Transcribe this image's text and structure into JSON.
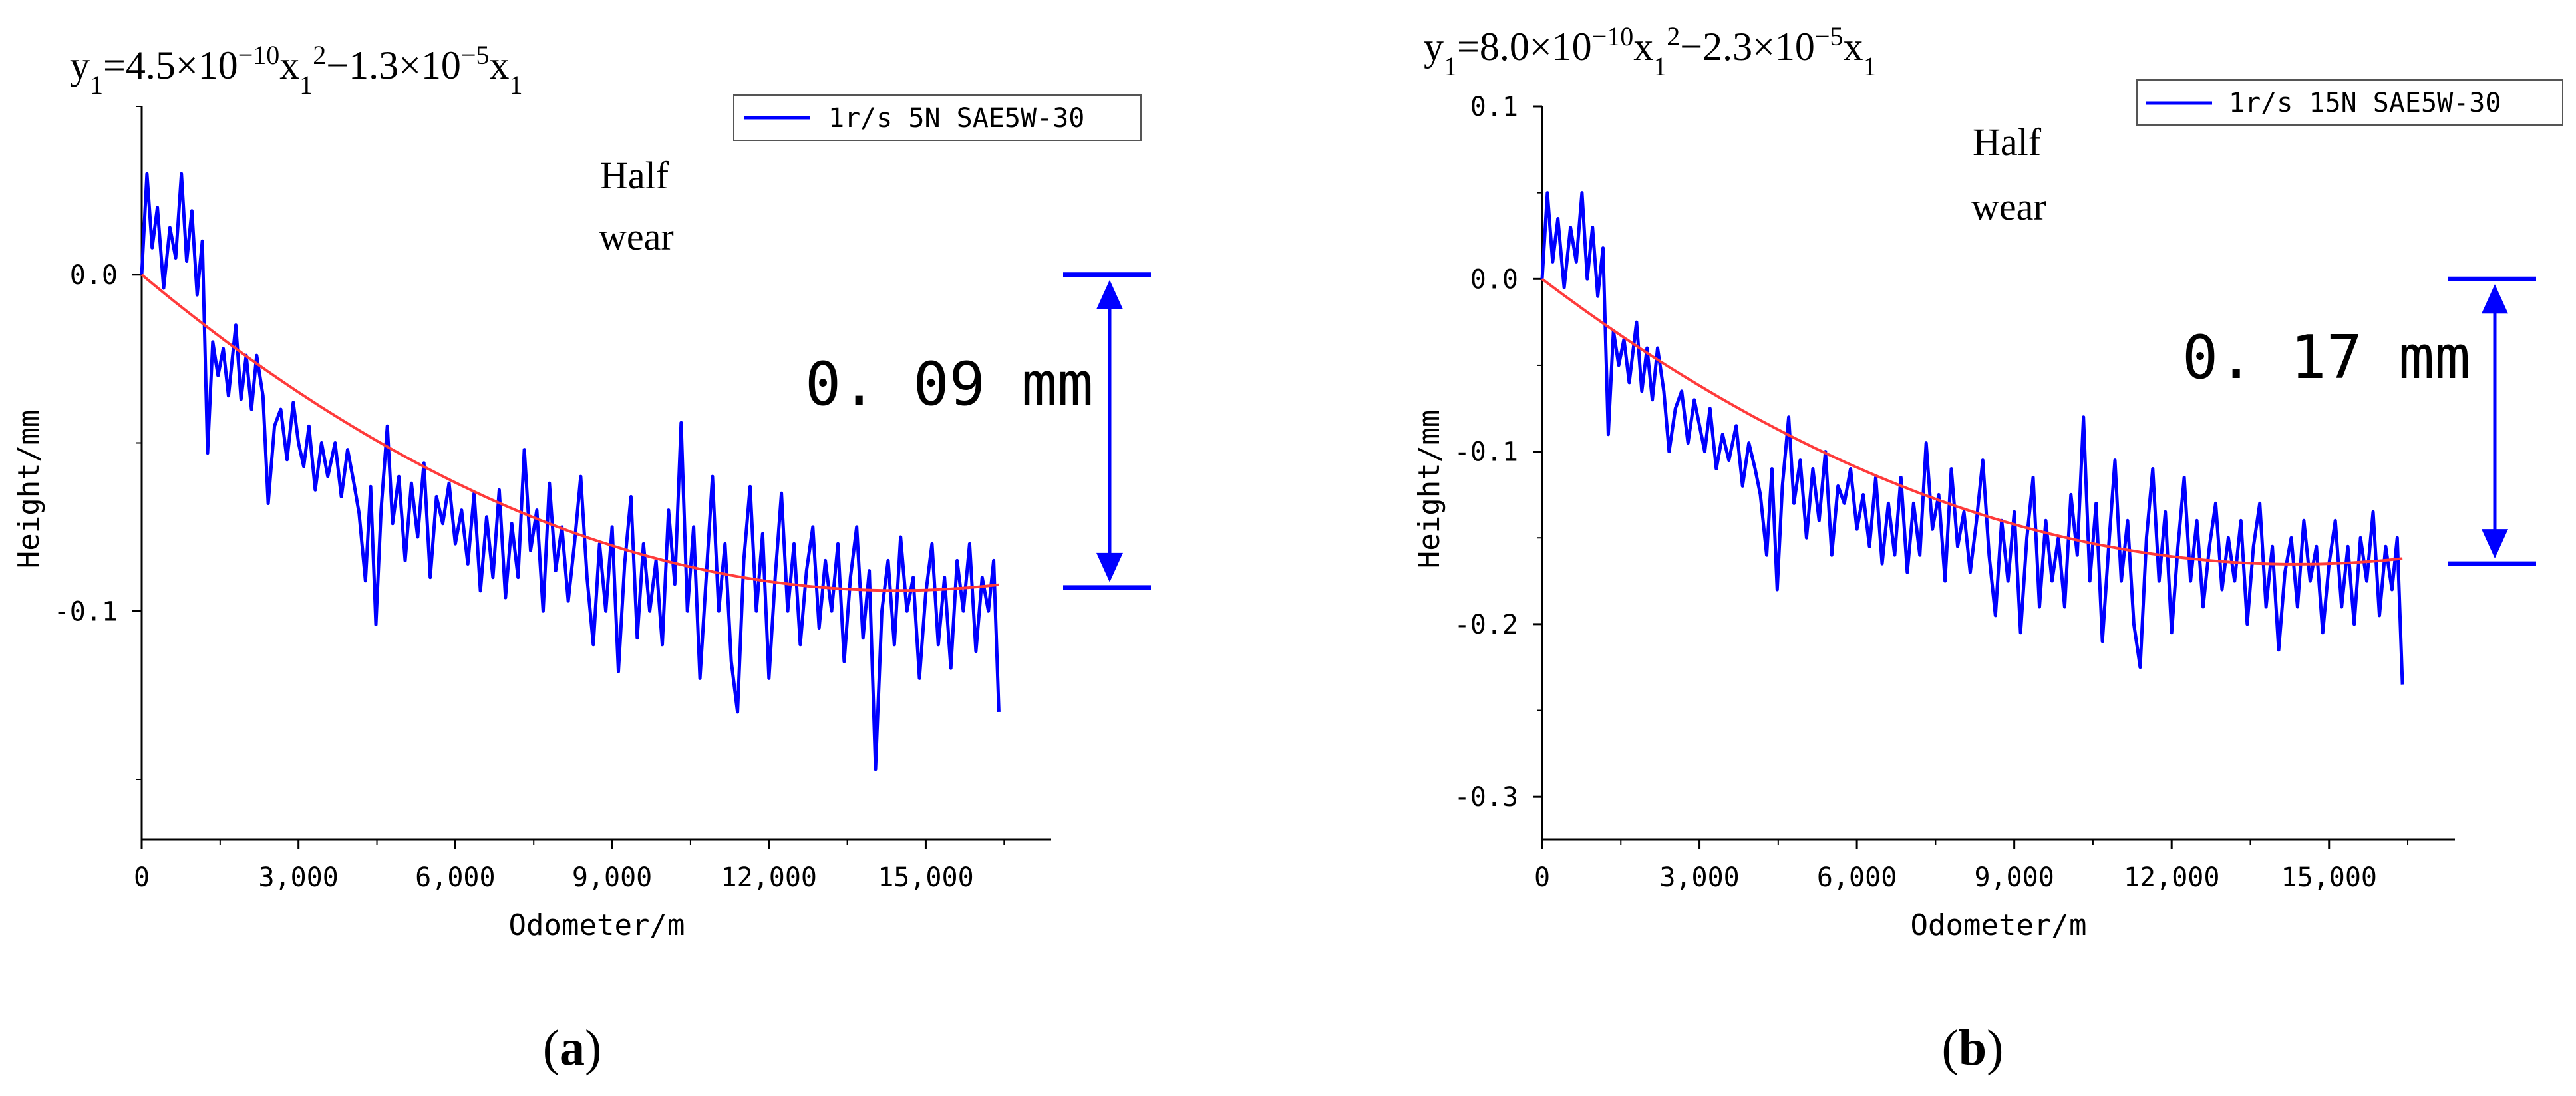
{
  "chart_data": [
    {
      "panel_label": "a",
      "type": "line",
      "equation": {
        "prefix": "y",
        "prefix_sub": "1",
        "eq1": "=4.5×10",
        "exp1": "−10",
        "x1": "x",
        "x1_sub": "1",
        "x1_sup": "2",
        "eq2": "−1.3×10",
        "exp2": "−5",
        "x2": "x",
        "x2_sub": "1"
      },
      "xlabel": "Odometer/m",
      "ylabel": "Height/mm",
      "xlim": [
        0,
        17400
      ],
      "ylim": [
        -0.168,
        0.05
      ],
      "xticks": [
        0,
        3000,
        6000,
        9000,
        12000,
        15000
      ],
      "xtick_labels": [
        "0",
        "3,000",
        "6,000",
        "9,000",
        "12,000",
        "15,000"
      ],
      "yticks": [
        0,
        -0.1
      ],
      "ytick_labels": [
        "0.0",
        "-0.1"
      ],
      "legend": "1r/s 5N SAE5W-30",
      "annotation": [
        "Half",
        "wear"
      ],
      "measure": {
        "label": "0. 09  mm",
        "top": 0,
        "bottom": -0.093
      },
      "fit": {
        "a": 4.5e-10,
        "b": -1.3e-05,
        "x_max": 16400
      },
      "series_color": "#0000ff",
      "fit_color": "#ff3b3b",
      "noise_points": [
        [
          0,
          0.0
        ],
        [
          100,
          0.03
        ],
        [
          200,
          0.008
        ],
        [
          300,
          0.02
        ],
        [
          420,
          -0.004
        ],
        [
          540,
          0.014
        ],
        [
          650,
          0.005
        ],
        [
          760,
          0.03
        ],
        [
          860,
          0.004
        ],
        [
          960,
          0.019
        ],
        [
          1060,
          -0.006
        ],
        [
          1160,
          0.01
        ],
        [
          1260,
          -0.053
        ],
        [
          1360,
          -0.02
        ],
        [
          1460,
          -0.03
        ],
        [
          1560,
          -0.022
        ],
        [
          1660,
          -0.036
        ],
        [
          1800,
          -0.015
        ],
        [
          1900,
          -0.037
        ],
        [
          2000,
          -0.024
        ],
        [
          2100,
          -0.04
        ],
        [
          2200,
          -0.024
        ],
        [
          2320,
          -0.036
        ],
        [
          2420,
          -0.068
        ],
        [
          2540,
          -0.045
        ],
        [
          2660,
          -0.04
        ],
        [
          2780,
          -0.055
        ],
        [
          2900,
          -0.038
        ],
        [
          3000,
          -0.05
        ],
        [
          3100,
          -0.057
        ],
        [
          3200,
          -0.045
        ],
        [
          3320,
          -0.064
        ],
        [
          3440,
          -0.05
        ],
        [
          3560,
          -0.06
        ],
        [
          3700,
          -0.05
        ],
        [
          3820,
          -0.066
        ],
        [
          3940,
          -0.052
        ],
        [
          4060,
          -0.062
        ],
        [
          4160,
          -0.071
        ],
        [
          4280,
          -0.091
        ],
        [
          4380,
          -0.063
        ],
        [
          4480,
          -0.104
        ],
        [
          4580,
          -0.07
        ],
        [
          4700,
          -0.045
        ],
        [
          4800,
          -0.074
        ],
        [
          4920,
          -0.06
        ],
        [
          5040,
          -0.085
        ],
        [
          5160,
          -0.062
        ],
        [
          5280,
          -0.078
        ],
        [
          5400,
          -0.056
        ],
        [
          5520,
          -0.09
        ],
        [
          5640,
          -0.066
        ],
        [
          5760,
          -0.074
        ],
        [
          5880,
          -0.062
        ],
        [
          6000,
          -0.08
        ],
        [
          6120,
          -0.07
        ],
        [
          6240,
          -0.086
        ],
        [
          6360,
          -0.065
        ],
        [
          6480,
          -0.094
        ],
        [
          6600,
          -0.072
        ],
        [
          6720,
          -0.09
        ],
        [
          6840,
          -0.064
        ],
        [
          6960,
          -0.096
        ],
        [
          7080,
          -0.074
        ],
        [
          7200,
          -0.09
        ],
        [
          7320,
          -0.052
        ],
        [
          7440,
          -0.082
        ],
        [
          7560,
          -0.07
        ],
        [
          7680,
          -0.1
        ],
        [
          7800,
          -0.062
        ],
        [
          7920,
          -0.088
        ],
        [
          8040,
          -0.075
        ],
        [
          8160,
          -0.097
        ],
        [
          8280,
          -0.08
        ],
        [
          8400,
          -0.06
        ],
        [
          8520,
          -0.09
        ],
        [
          8640,
          -0.11
        ],
        [
          8760,
          -0.08
        ],
        [
          8880,
          -0.1
        ],
        [
          9000,
          -0.075
        ],
        [
          9120,
          -0.118
        ],
        [
          9240,
          -0.086
        ],
        [
          9360,
          -0.066
        ],
        [
          9480,
          -0.108
        ],
        [
          9600,
          -0.08
        ],
        [
          9720,
          -0.1
        ],
        [
          9840,
          -0.085
        ],
        [
          9960,
          -0.11
        ],
        [
          10080,
          -0.07
        ],
        [
          10200,
          -0.092
        ],
        [
          10320,
          -0.044
        ],
        [
          10440,
          -0.1
        ],
        [
          10560,
          -0.075
        ],
        [
          10680,
          -0.12
        ],
        [
          10800,
          -0.09
        ],
        [
          10920,
          -0.06
        ],
        [
          11040,
          -0.1
        ],
        [
          11160,
          -0.08
        ],
        [
          11280,
          -0.115
        ],
        [
          11400,
          -0.13
        ],
        [
          11520,
          -0.085
        ],
        [
          11640,
          -0.063
        ],
        [
          11760,
          -0.1
        ],
        [
          11880,
          -0.077
        ],
        [
          12000,
          -0.12
        ],
        [
          12120,
          -0.09
        ],
        [
          12240,
          -0.065
        ],
        [
          12360,
          -0.1
        ],
        [
          12480,
          -0.08
        ],
        [
          12600,
          -0.11
        ],
        [
          12720,
          -0.088
        ],
        [
          12840,
          -0.075
        ],
        [
          12960,
          -0.105
        ],
        [
          13080,
          -0.085
        ],
        [
          13200,
          -0.1
        ],
        [
          13320,
          -0.08
        ],
        [
          13440,
          -0.115
        ],
        [
          13560,
          -0.09
        ],
        [
          13680,
          -0.075
        ],
        [
          13800,
          -0.108
        ],
        [
          13920,
          -0.088
        ],
        [
          14040,
          -0.147
        ],
        [
          14160,
          -0.1
        ],
        [
          14280,
          -0.085
        ],
        [
          14400,
          -0.11
        ],
        [
          14520,
          -0.078
        ],
        [
          14640,
          -0.1
        ],
        [
          14760,
          -0.09
        ],
        [
          14880,
          -0.12
        ],
        [
          15000,
          -0.095
        ],
        [
          15120,
          -0.08
        ],
        [
          15240,
          -0.11
        ],
        [
          15360,
          -0.09
        ],
        [
          15480,
          -0.117
        ],
        [
          15600,
          -0.085
        ],
        [
          15720,
          -0.1
        ],
        [
          15840,
          -0.08
        ],
        [
          15960,
          -0.112
        ],
        [
          16080,
          -0.09
        ],
        [
          16200,
          -0.1
        ],
        [
          16300,
          -0.085
        ],
        [
          16400,
          -0.13
        ]
      ]
    },
    {
      "panel_label": "b",
      "type": "line",
      "equation": {
        "prefix": "y",
        "prefix_sub": "1",
        "eq1": "=8.0×10",
        "exp1": "−10",
        "x1": "x",
        "x1_sub": "1",
        "x1_sup": "2",
        "eq2": "−2.3×10",
        "exp2": "−5",
        "x2": "x",
        "x2_sub": "1"
      },
      "xlabel": "Odometer/m",
      "ylabel": "Height/mm",
      "xlim": [
        0,
        17400
      ],
      "ylim": [
        -0.325,
        0.1
      ],
      "xticks": [
        0,
        3000,
        6000,
        9000,
        12000,
        15000
      ],
      "xtick_labels": [
        "0",
        "3,000",
        "6,000",
        "9,000",
        "12,000",
        "15,000"
      ],
      "yticks": [
        0.1,
        0,
        -0.1,
        -0.2,
        -0.3
      ],
      "ytick_labels": [
        "0.1",
        "0.0",
        "-0.1",
        "-0.2",
        "-0.3"
      ],
      "legend": "1r/s 15N SAE5W-30",
      "annotation": [
        "Half",
        "wear"
      ],
      "measure": {
        "label": "0. 17  mm",
        "top": 0,
        "bottom": -0.165
      },
      "fit": {
        "a": 8e-10,
        "b": -2.3e-05,
        "x_max": 16400
      },
      "series_color": "#0000ff",
      "fit_color": "#ff3b3b",
      "noise_points": [
        [
          0,
          0.0
        ],
        [
          100,
          0.05
        ],
        [
          200,
          0.01
        ],
        [
          300,
          0.035
        ],
        [
          420,
          -0.005
        ],
        [
          540,
          0.03
        ],
        [
          650,
          0.01
        ],
        [
          760,
          0.05
        ],
        [
          860,
          0.0
        ],
        [
          960,
          0.03
        ],
        [
          1060,
          -0.01
        ],
        [
          1160,
          0.018
        ],
        [
          1260,
          -0.09
        ],
        [
          1360,
          -0.03
        ],
        [
          1460,
          -0.05
        ],
        [
          1560,
          -0.035
        ],
        [
          1660,
          -0.06
        ],
        [
          1800,
          -0.025
        ],
        [
          1900,
          -0.065
        ],
        [
          2000,
          -0.04
        ],
        [
          2100,
          -0.07
        ],
        [
          2200,
          -0.04
        ],
        [
          2320,
          -0.065
        ],
        [
          2420,
          -0.1
        ],
        [
          2540,
          -0.075
        ],
        [
          2660,
          -0.065
        ],
        [
          2780,
          -0.095
        ],
        [
          2900,
          -0.07
        ],
        [
          3000,
          -0.085
        ],
        [
          3100,
          -0.1
        ],
        [
          3200,
          -0.075
        ],
        [
          3320,
          -0.11
        ],
        [
          3440,
          -0.09
        ],
        [
          3560,
          -0.105
        ],
        [
          3700,
          -0.085
        ],
        [
          3820,
          -0.12
        ],
        [
          3940,
          -0.095
        ],
        [
          4060,
          -0.11
        ],
        [
          4160,
          -0.125
        ],
        [
          4280,
          -0.16
        ],
        [
          4380,
          -0.11
        ],
        [
          4480,
          -0.18
        ],
        [
          4580,
          -0.12
        ],
        [
          4700,
          -0.08
        ],
        [
          4800,
          -0.13
        ],
        [
          4920,
          -0.105
        ],
        [
          5040,
          -0.15
        ],
        [
          5160,
          -0.11
        ],
        [
          5280,
          -0.14
        ],
        [
          5400,
          -0.1
        ],
        [
          5520,
          -0.16
        ],
        [
          5640,
          -0.12
        ],
        [
          5760,
          -0.13
        ],
        [
          5880,
          -0.11
        ],
        [
          6000,
          -0.145
        ],
        [
          6120,
          -0.125
        ],
        [
          6240,
          -0.155
        ],
        [
          6360,
          -0.115
        ],
        [
          6480,
          -0.165
        ],
        [
          6600,
          -0.13
        ],
        [
          6720,
          -0.16
        ],
        [
          6840,
          -0.115
        ],
        [
          6960,
          -0.17
        ],
        [
          7080,
          -0.13
        ],
        [
          7200,
          -0.16
        ],
        [
          7320,
          -0.095
        ],
        [
          7440,
          -0.145
        ],
        [
          7560,
          -0.125
        ],
        [
          7680,
          -0.175
        ],
        [
          7800,
          -0.11
        ],
        [
          7920,
          -0.155
        ],
        [
          8040,
          -0.135
        ],
        [
          8160,
          -0.17
        ],
        [
          8280,
          -0.14
        ],
        [
          8400,
          -0.105
        ],
        [
          8520,
          -0.16
        ],
        [
          8640,
          -0.195
        ],
        [
          8760,
          -0.14
        ],
        [
          8880,
          -0.175
        ],
        [
          9000,
          -0.135
        ],
        [
          9120,
          -0.205
        ],
        [
          9240,
          -0.15
        ],
        [
          9360,
          -0.115
        ],
        [
          9480,
          -0.19
        ],
        [
          9600,
          -0.14
        ],
        [
          9720,
          -0.175
        ],
        [
          9840,
          -0.15
        ],
        [
          9960,
          -0.19
        ],
        [
          10080,
          -0.125
        ],
        [
          10200,
          -0.16
        ],
        [
          10320,
          -0.08
        ],
        [
          10440,
          -0.175
        ],
        [
          10560,
          -0.13
        ],
        [
          10680,
          -0.21
        ],
        [
          10800,
          -0.155
        ],
        [
          10920,
          -0.105
        ],
        [
          11040,
          -0.175
        ],
        [
          11160,
          -0.14
        ],
        [
          11280,
          -0.2
        ],
        [
          11400,
          -0.225
        ],
        [
          11520,
          -0.15
        ],
        [
          11640,
          -0.11
        ],
        [
          11760,
          -0.175
        ],
        [
          11880,
          -0.135
        ],
        [
          12000,
          -0.205
        ],
        [
          12120,
          -0.155
        ],
        [
          12240,
          -0.115
        ],
        [
          12360,
          -0.175
        ],
        [
          12480,
          -0.14
        ],
        [
          12600,
          -0.19
        ],
        [
          12720,
          -0.155
        ],
        [
          12840,
          -0.13
        ],
        [
          12960,
          -0.18
        ],
        [
          13080,
          -0.15
        ],
        [
          13200,
          -0.175
        ],
        [
          13320,
          -0.14
        ],
        [
          13440,
          -0.2
        ],
        [
          13560,
          -0.155
        ],
        [
          13680,
          -0.13
        ],
        [
          13800,
          -0.19
        ],
        [
          13920,
          -0.155
        ],
        [
          14040,
          -0.215
        ],
        [
          14160,
          -0.17
        ],
        [
          14280,
          -0.15
        ],
        [
          14400,
          -0.19
        ],
        [
          14520,
          -0.14
        ],
        [
          14640,
          -0.175
        ],
        [
          14760,
          -0.155
        ],
        [
          14880,
          -0.205
        ],
        [
          15000,
          -0.165
        ],
        [
          15120,
          -0.14
        ],
        [
          15240,
          -0.19
        ],
        [
          15360,
          -0.155
        ],
        [
          15480,
          -0.2
        ],
        [
          15600,
          -0.15
        ],
        [
          15720,
          -0.175
        ],
        [
          15840,
          -0.135
        ],
        [
          15960,
          -0.195
        ],
        [
          16080,
          -0.155
        ],
        [
          16200,
          -0.18
        ],
        [
          16300,
          -0.15
        ],
        [
          16400,
          -0.235
        ]
      ]
    }
  ]
}
